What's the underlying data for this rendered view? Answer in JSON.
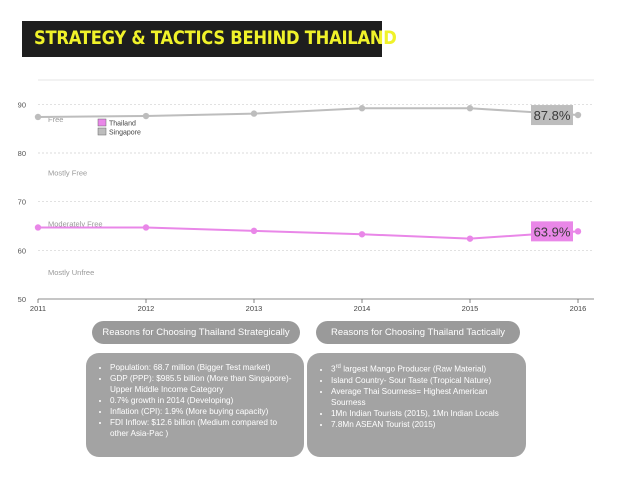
{
  "title": "STRATEGY & TACTICS BEHIND THAILAND",
  "colors": {
    "thailand": "#e987e8",
    "singapore": "#bdbdbd",
    "title_bg": "#1e1e1e",
    "title_fg": "#f0f22a",
    "box": "#a3a3a3"
  },
  "chart_data": {
    "type": "line",
    "x": [
      "2011",
      "2012",
      "2013",
      "2014",
      "2015",
      "2016"
    ],
    "series": [
      {
        "name": "Thailand",
        "values": [
          64.7,
          64.7,
          64.0,
          63.3,
          62.4,
          63.9
        ]
      },
      {
        "name": "Singapore",
        "values": [
          87.4,
          87.6,
          88.1,
          89.2,
          89.2,
          87.8
        ]
      }
    ],
    "ylim": [
      50,
      95
    ],
    "yticks": [
      50,
      60,
      70,
      80,
      90
    ],
    "grid": true,
    "legend": "top-left",
    "zones": [
      {
        "label": "Free",
        "y": 87.0
      },
      {
        "label": "Mostly Free",
        "y": 76.0
      },
      {
        "label": "Moderately Free",
        "y": 65.5
      },
      {
        "label": "Mostly Unfree",
        "y": 55.5
      }
    ],
    "annotations": [
      {
        "series": "Singapore",
        "text": "87.8%"
      },
      {
        "series": "Thailand",
        "text": "63.9%"
      }
    ]
  },
  "panels": {
    "strategic": {
      "header": "Reasons for Choosing Thailand Strategically",
      "items": [
        "Population: 68.7 million (Bigger Test market)",
        "GDP (PPP): $985.5 billion (More than Singapore)- Upper Middle Income Category",
        "0.7% growth in 2014 (Developing)",
        "Inflation (CPI): 1.9% (More buying capacity)",
        "FDI Inflow: $12.6 billion (Medium compared to other Asia-Pac )"
      ]
    },
    "tactical": {
      "header": "Reasons for Choosing Thailand Tactically",
      "items": [
        "3rd largest Mango Producer (Raw Material)",
        "Island Country- Sour Taste (Tropical Nature)",
        "Average Thai Sourness= Highest American Sourness",
        "1Mn Indian Tourists (2015), 1Mn Indian Locals",
        "7.8Mn ASEAN Tourist (2015)"
      ]
    }
  }
}
